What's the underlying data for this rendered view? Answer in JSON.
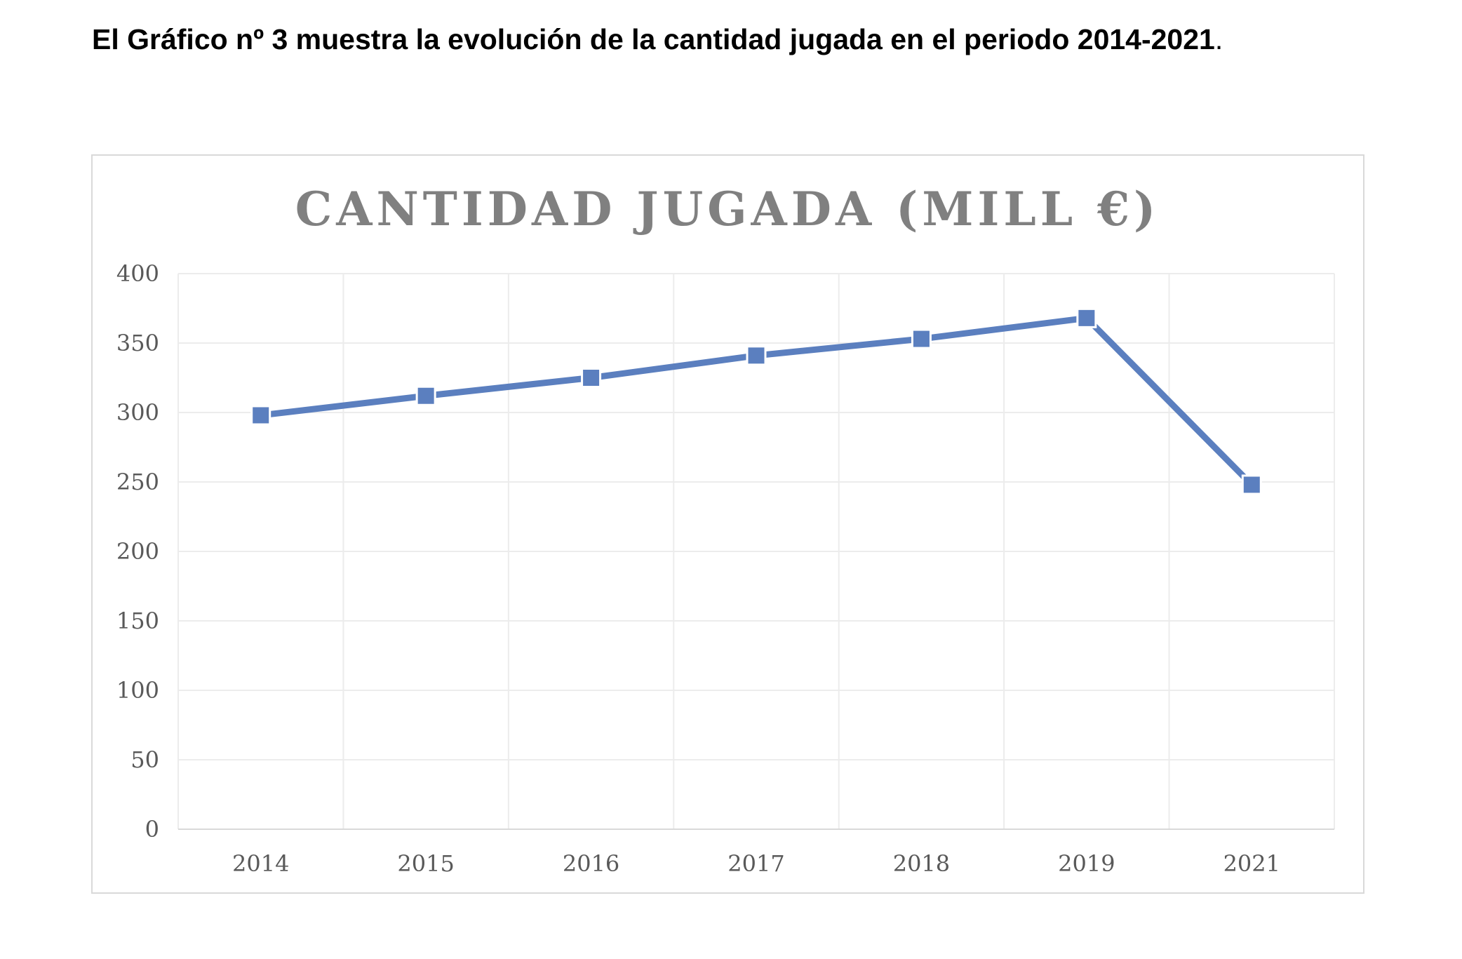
{
  "intro": {
    "text": "El Gráfico nº 3 muestra la evolución de la cantidad jugada en el periodo 2014-2021",
    "period": "."
  },
  "chart_data": {
    "type": "line",
    "title": "CANTIDAD JUGADA (MILL €)",
    "xlabel": "",
    "ylabel": "",
    "categories": [
      "2014",
      "2015",
      "2016",
      "2017",
      "2018",
      "2019",
      "2021"
    ],
    "series": [
      {
        "values": [
          298,
          312,
          325,
          341,
          353,
          368,
          248
        ],
        "color": "#5b7fbf"
      }
    ],
    "ylim": [
      0,
      400
    ],
    "yticks": [
      "0",
      "50",
      "100",
      "150",
      "200",
      "250",
      "300",
      "350",
      "400"
    ],
    "grid": true,
    "legend": "none",
    "marker": "square"
  }
}
